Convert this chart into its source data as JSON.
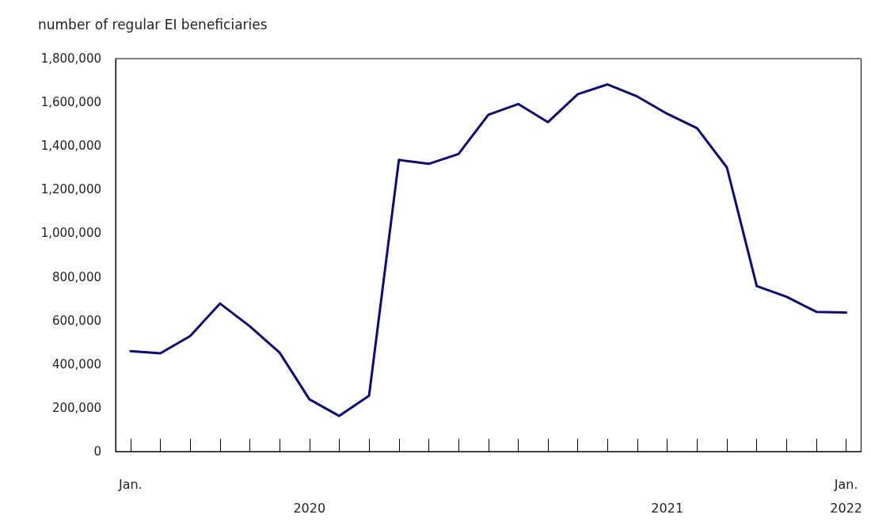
{
  "chart_data": {
    "type": "line",
    "ylabel": "number of regular EI beneficiaries",
    "categories": [
      "Jan.",
      null,
      null,
      null,
      null,
      null,
      "2020",
      null,
      null,
      null,
      null,
      null,
      null,
      null,
      null,
      null,
      null,
      null,
      "2021",
      null,
      null,
      null,
      null,
      null,
      "Jan.\n2022"
    ],
    "series": [
      {
        "color": "#0a0a80",
        "values": [
          460000,
          450000,
          529000,
          678000,
          574000,
          453000,
          239000,
          163000,
          256000,
          1336000,
          1318000,
          1363000,
          1543000,
          1592000,
          1509000,
          1637000,
          1682000,
          1626000,
          1547000,
          1481000,
          1301000,
          758000,
          709000,
          640000,
          637000
        ]
      }
    ],
    "ylim": [
      0,
      1800000
    ],
    "yticks": [
      0,
      {
        "value": 200000,
        "label": "200,000"
      },
      {
        "value": 400000,
        "label": "400,000"
      },
      {
        "value": 600000,
        "label": "600,000"
      },
      {
        "value": 800000,
        "label": "800,000"
      },
      {
        "value": 1000000,
        "label": "1,000,000"
      },
      {
        "value": 1200000,
        "label": "1,200,000"
      },
      {
        "value": 1400000,
        "label": "1,400,000"
      },
      {
        "value": 1600000,
        "label": "1,600,000"
      },
      {
        "value": 1800000,
        "label": "1,800,000"
      }
    ],
    "grid": false,
    "marker": "none",
    "line_style": "solid"
  }
}
